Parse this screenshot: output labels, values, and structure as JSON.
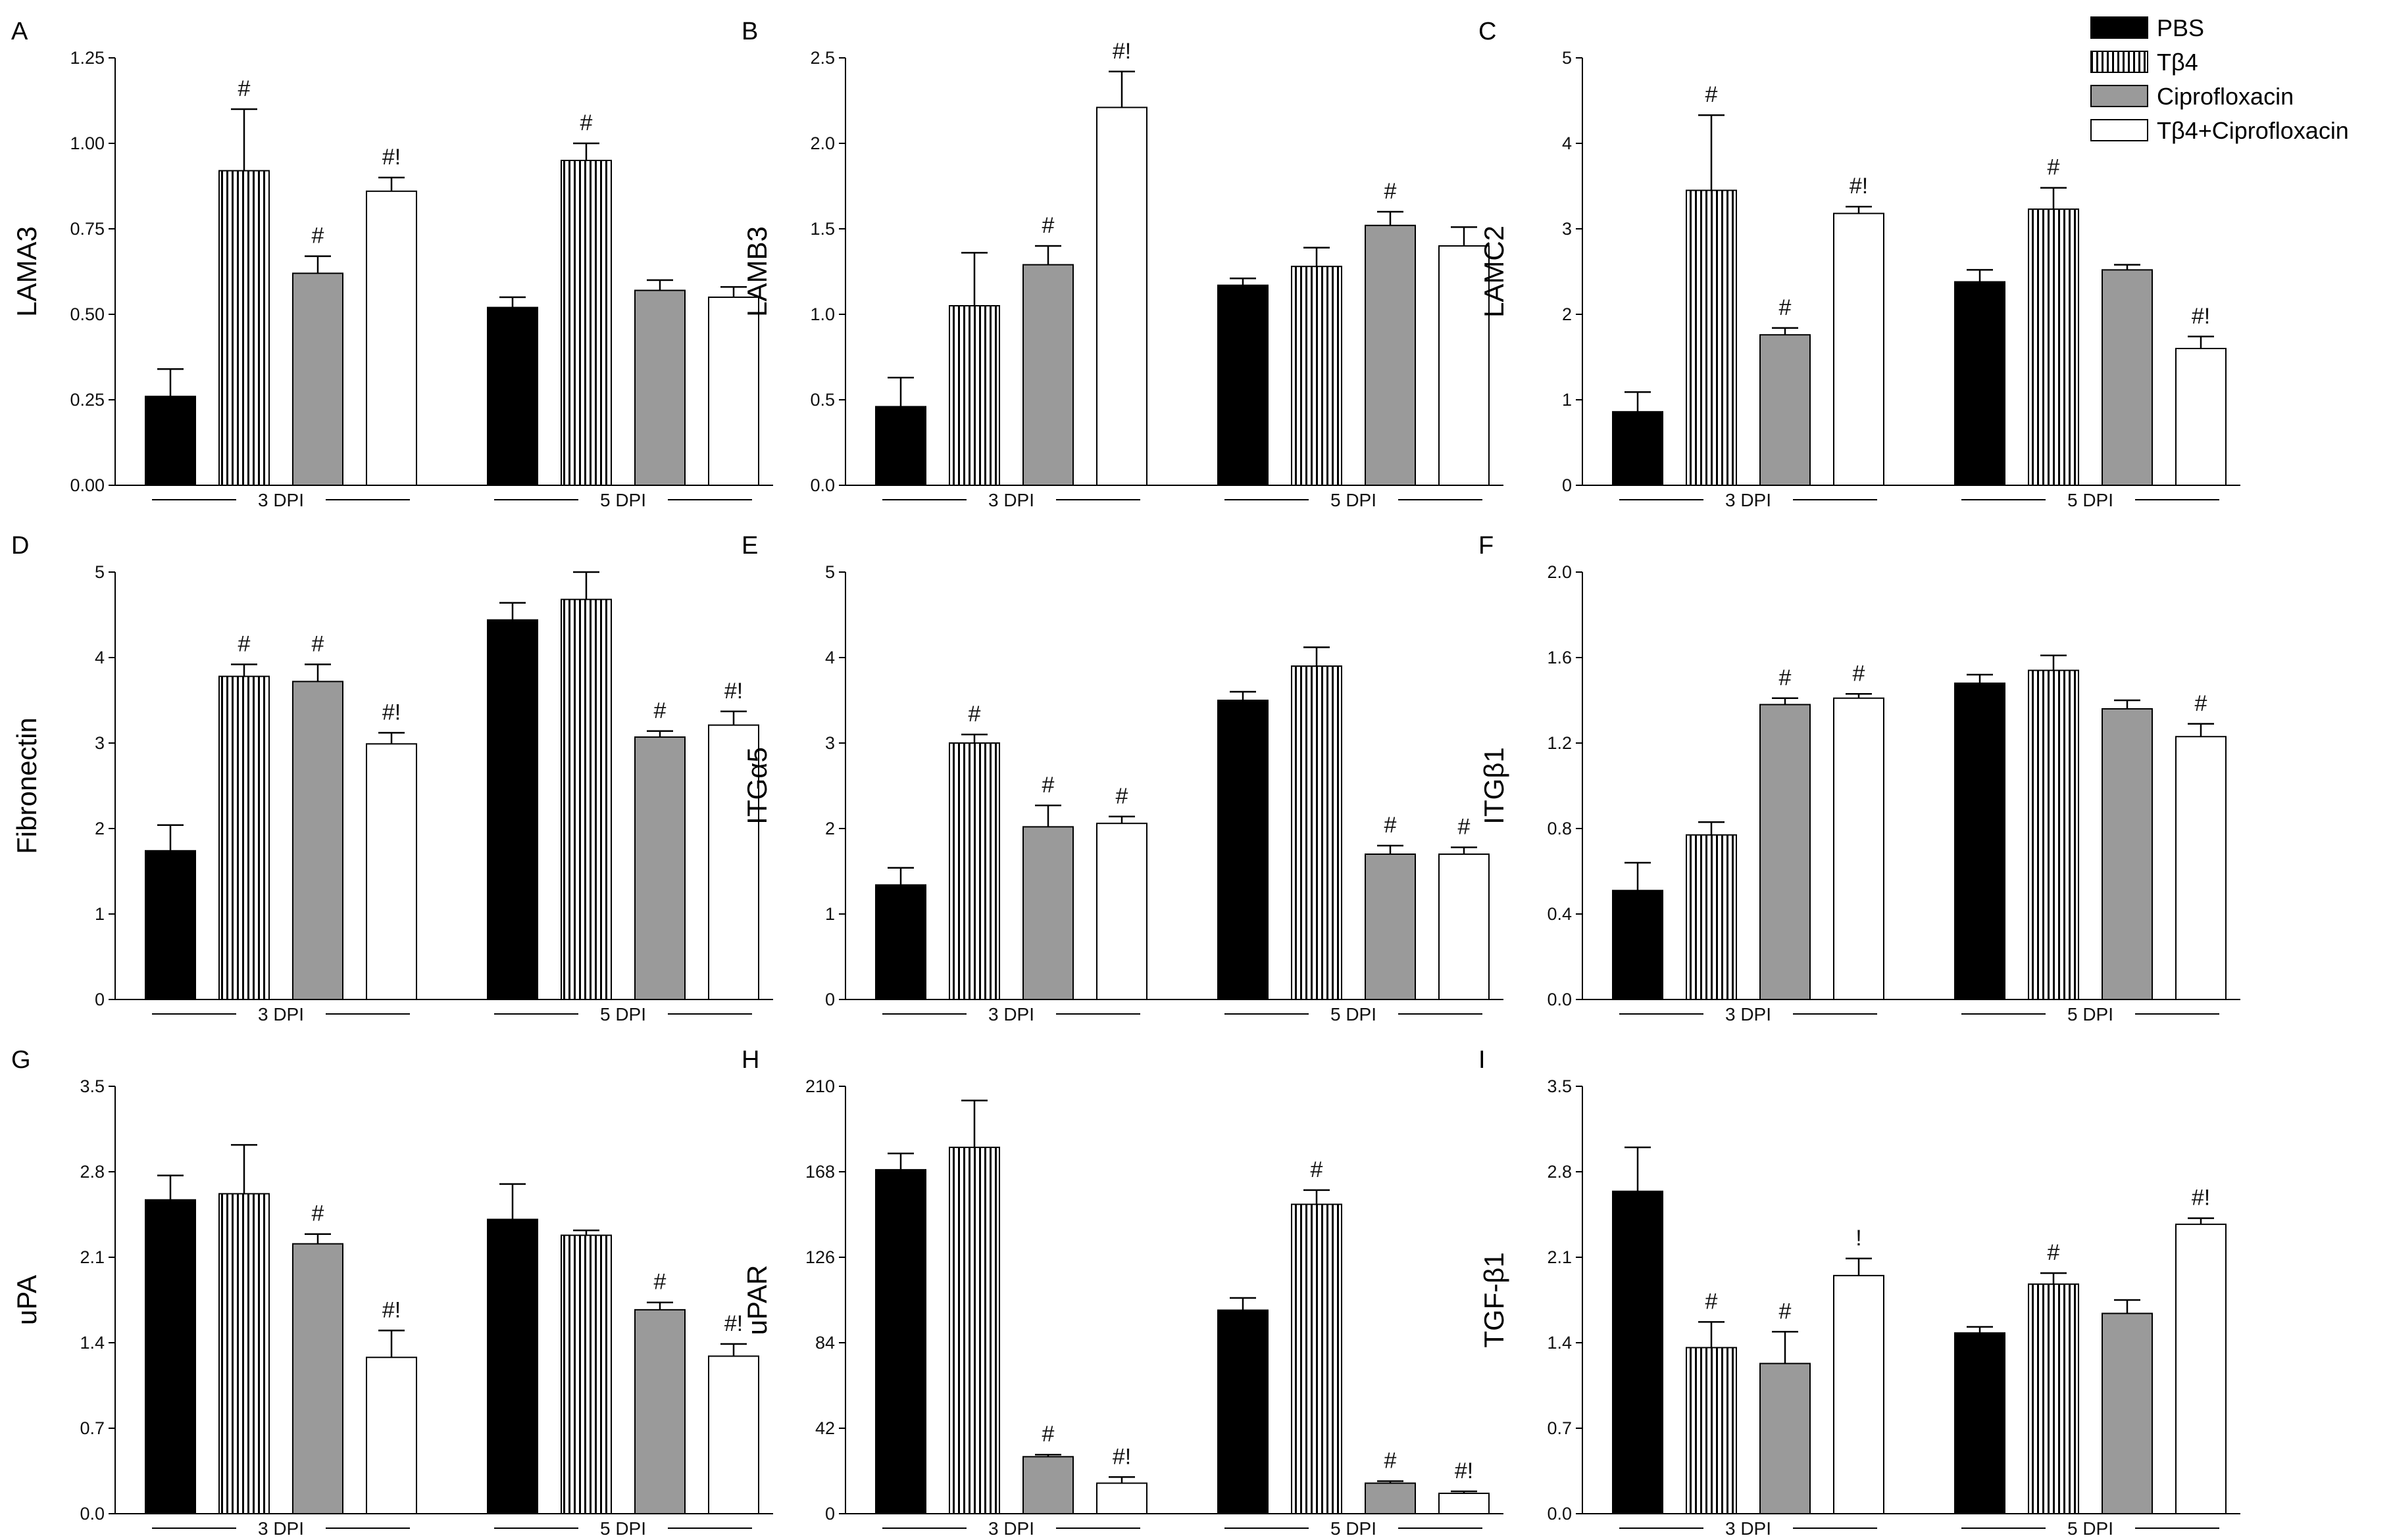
{
  "legend": {
    "items": [
      {
        "label": "PBS",
        "fill": "solid-black"
      },
      {
        "label": "Tβ4",
        "fill": "vertical-stripes"
      },
      {
        "label": "Ciprofloxacin",
        "fill": "solid-gray"
      },
      {
        "label": "Tβ4+Ciprofloxacin",
        "fill": "white"
      }
    ]
  },
  "colors": {
    "pbs": "#000000",
    "cipro": "#9a9a9a",
    "combo": "#ffffff",
    "stripe": "#000000",
    "axis": "#000000"
  },
  "chart_data": [
    {
      "panel": "A",
      "type": "bar",
      "ylabel": "LAMA3",
      "ylim": [
        0,
        1.25
      ],
      "yticks": [
        "0.00",
        "0.25",
        "0.50",
        "0.75",
        "1.00",
        "1.25"
      ],
      "groups": [
        "3 DPI",
        "5 DPI"
      ],
      "series": [
        {
          "name": "PBS",
          "values": [
            0.26,
            0.52
          ],
          "errors": [
            0.08,
            0.03
          ],
          "annotations": [
            "",
            ""
          ]
        },
        {
          "name": "Tβ4",
          "values": [
            0.92,
            0.95
          ],
          "errors": [
            0.18,
            0.05
          ],
          "annotations": [
            "#",
            "#"
          ]
        },
        {
          "name": "Ciprofloxacin",
          "values": [
            0.62,
            0.57
          ],
          "errors": [
            0.05,
            0.03
          ],
          "annotations": [
            "#",
            ""
          ]
        },
        {
          "name": "Tβ4+Ciprofloxacin",
          "values": [
            0.86,
            0.55
          ],
          "errors": [
            0.04,
            0.03
          ],
          "annotations": [
            "#!",
            ""
          ]
        }
      ]
    },
    {
      "panel": "B",
      "type": "bar",
      "ylabel": "LAMB3",
      "ylim": [
        0,
        2.5
      ],
      "yticks": [
        "0.0",
        "0.5",
        "1.0",
        "1.5",
        "2.0",
        "2.5"
      ],
      "groups": [
        "3 DPI",
        "5 DPI"
      ],
      "series": [
        {
          "name": "PBS",
          "values": [
            0.46,
            1.17
          ],
          "errors": [
            0.17,
            0.04
          ],
          "annotations": [
            "",
            ""
          ]
        },
        {
          "name": "Tβ4",
          "values": [
            1.05,
            1.28
          ],
          "errors": [
            0.31,
            0.11
          ],
          "annotations": [
            "",
            ""
          ]
        },
        {
          "name": "Ciprofloxacin",
          "values": [
            1.29,
            1.52
          ],
          "errors": [
            0.11,
            0.08
          ],
          "annotations": [
            "#",
            "#"
          ]
        },
        {
          "name": "Tβ4+Ciprofloxacin",
          "values": [
            2.21,
            1.4
          ],
          "errors": [
            0.21,
            0.11
          ],
          "annotations": [
            "#!",
            ""
          ]
        }
      ]
    },
    {
      "panel": "C",
      "type": "bar",
      "ylabel": "LAMC2",
      "ylim": [
        0,
        5
      ],
      "yticks": [
        "0",
        "1",
        "2",
        "3",
        "4",
        "5"
      ],
      "groups": [
        "3 DPI",
        "5 DPI"
      ],
      "series": [
        {
          "name": "PBS",
          "values": [
            0.86,
            2.38
          ],
          "errors": [
            0.23,
            0.14
          ],
          "annotations": [
            "",
            ""
          ]
        },
        {
          "name": "Tβ4",
          "values": [
            3.45,
            3.23
          ],
          "errors": [
            0.88,
            0.25
          ],
          "annotations": [
            "#",
            "#"
          ]
        },
        {
          "name": "Ciprofloxacin",
          "values": [
            1.76,
            2.52
          ],
          "errors": [
            0.08,
            0.06
          ],
          "annotations": [
            "#",
            ""
          ]
        },
        {
          "name": "Tβ4+Ciprofloxacin",
          "values": [
            3.18,
            1.6
          ],
          "errors": [
            0.08,
            0.14
          ],
          "annotations": [
            "#!",
            "#!"
          ]
        }
      ]
    },
    {
      "panel": "D",
      "type": "bar",
      "ylabel": "Fibronectin",
      "ylim": [
        0,
        5
      ],
      "yticks": [
        "0",
        "1",
        "2",
        "3",
        "4",
        "5"
      ],
      "groups": [
        "3 DPI",
        "5 DPI"
      ],
      "series": [
        {
          "name": "PBS",
          "values": [
            1.74,
            4.44
          ],
          "errors": [
            0.3,
            0.2
          ],
          "annotations": [
            "",
            ""
          ]
        },
        {
          "name": "Tβ4",
          "values": [
            3.78,
            4.68
          ],
          "errors": [
            0.14,
            0.32
          ],
          "annotations": [
            "#",
            ""
          ]
        },
        {
          "name": "Ciprofloxacin",
          "values": [
            3.72,
            3.07
          ],
          "errors": [
            0.2,
            0.07
          ],
          "annotations": [
            "#",
            "#"
          ]
        },
        {
          "name": "Tβ4+Ciprofloxacin",
          "values": [
            2.99,
            3.21
          ],
          "errors": [
            0.13,
            0.16
          ],
          "annotations": [
            "#!",
            "#!"
          ]
        }
      ]
    },
    {
      "panel": "E",
      "type": "bar",
      "ylabel": "ITGα5",
      "ylim": [
        0,
        5
      ],
      "yticks": [
        "0",
        "1",
        "2",
        "3",
        "4",
        "5"
      ],
      "groups": [
        "3 DPI",
        "5 DPI"
      ],
      "series": [
        {
          "name": "PBS",
          "values": [
            1.34,
            3.5
          ],
          "errors": [
            0.2,
            0.1
          ],
          "annotations": [
            "",
            ""
          ]
        },
        {
          "name": "Tβ4",
          "values": [
            3.0,
            3.9
          ],
          "errors": [
            0.1,
            0.22
          ],
          "annotations": [
            "#",
            ""
          ]
        },
        {
          "name": "Ciprofloxacin",
          "values": [
            2.02,
            1.7
          ],
          "errors": [
            0.25,
            0.1
          ],
          "annotations": [
            "#",
            "#"
          ]
        },
        {
          "name": "Tβ4+Ciprofloxacin",
          "values": [
            2.06,
            1.7
          ],
          "errors": [
            0.08,
            0.08
          ],
          "annotations": [
            "#",
            "#"
          ]
        }
      ]
    },
    {
      "panel": "F",
      "type": "bar",
      "ylabel": "ITGβ1",
      "ylim": [
        0,
        2.0
      ],
      "yticks": [
        "0.0",
        "0.4",
        "0.8",
        "1.2",
        "1.6",
        "2.0"
      ],
      "groups": [
        "3 DPI",
        "5 DPI"
      ],
      "series": [
        {
          "name": "PBS",
          "values": [
            0.51,
            1.48
          ],
          "errors": [
            0.13,
            0.04
          ],
          "annotations": [
            "",
            ""
          ]
        },
        {
          "name": "Tβ4",
          "values": [
            0.77,
            1.54
          ],
          "errors": [
            0.06,
            0.07
          ],
          "annotations": [
            "",
            ""
          ]
        },
        {
          "name": "Ciprofloxacin",
          "values": [
            1.38,
            1.36
          ],
          "errors": [
            0.03,
            0.04
          ],
          "annotations": [
            "#",
            ""
          ]
        },
        {
          "name": "Tβ4+Ciprofloxacin",
          "values": [
            1.41,
            1.23
          ],
          "errors": [
            0.02,
            0.06
          ],
          "annotations": [
            "#",
            "#"
          ]
        }
      ]
    },
    {
      "panel": "G",
      "type": "bar",
      "ylabel": "uPA",
      "ylim": [
        0,
        3.5
      ],
      "yticks": [
        "0.0",
        "0.7",
        "1.4",
        "2.1",
        "2.8",
        "3.5"
      ],
      "groups": [
        "3 DPI",
        "5 DPI"
      ],
      "series": [
        {
          "name": "PBS",
          "values": [
            2.57,
            2.41
          ],
          "errors": [
            0.2,
            0.29
          ],
          "annotations": [
            "",
            ""
          ]
        },
        {
          "name": "Tβ4",
          "values": [
            2.62,
            2.28
          ],
          "errors": [
            0.4,
            0.04
          ],
          "annotations": [
            "",
            ""
          ]
        },
        {
          "name": "Ciprofloxacin",
          "values": [
            2.21,
            1.67
          ],
          "errors": [
            0.08,
            0.06
          ],
          "annotations": [
            "#",
            "#"
          ]
        },
        {
          "name": "Tβ4+Ciprofloxacin",
          "values": [
            1.28,
            1.29
          ],
          "errors": [
            0.22,
            0.1
          ],
          "annotations": [
            "#!",
            "#!"
          ]
        }
      ]
    },
    {
      "panel": "H",
      "type": "bar",
      "ylabel": "uPAR",
      "ylim": [
        0,
        210
      ],
      "yticks": [
        "0",
        "42",
        "84",
        "126",
        "168",
        "210"
      ],
      "groups": [
        "3 DPI",
        "5 DPI"
      ],
      "series": [
        {
          "name": "PBS",
          "values": [
            169,
            100
          ],
          "errors": [
            8,
            6
          ],
          "annotations": [
            "",
            ""
          ]
        },
        {
          "name": "Tβ4",
          "values": [
            180,
            152
          ],
          "errors": [
            23,
            7
          ],
          "annotations": [
            "",
            "#"
          ]
        },
        {
          "name": "Ciprofloxacin",
          "values": [
            28,
            15
          ],
          "errors": [
            1,
            1
          ],
          "annotations": [
            "#",
            "#"
          ]
        },
        {
          "name": "Tβ4+Ciprofloxacin",
          "values": [
            15,
            10
          ],
          "errors": [
            3,
            1
          ],
          "annotations": [
            "#!",
            "#!"
          ]
        }
      ]
    },
    {
      "panel": "I",
      "type": "bar",
      "ylabel": "TGF-β1",
      "ylim": [
        0,
        3.5
      ],
      "yticks": [
        "0.0",
        "0.7",
        "1.4",
        "2.1",
        "2.8",
        "3.5"
      ],
      "groups": [
        "3 DPI",
        "5 DPI"
      ],
      "series": [
        {
          "name": "PBS",
          "values": [
            2.64,
            1.48
          ],
          "errors": [
            0.36,
            0.05
          ],
          "annotations": [
            "",
            ""
          ]
        },
        {
          "name": "Tβ4",
          "values": [
            1.36,
            1.88
          ],
          "errors": [
            0.21,
            0.09
          ],
          "annotations": [
            "#",
            "#"
          ]
        },
        {
          "name": "Ciprofloxacin",
          "values": [
            1.23,
            1.64
          ],
          "errors": [
            0.26,
            0.11
          ],
          "annotations": [
            "#",
            ""
          ]
        },
        {
          "name": "Tβ4+Ciprofloxacin",
          "values": [
            1.95,
            2.37
          ],
          "errors": [
            0.14,
            0.05
          ],
          "annotations": [
            "!",
            "#!"
          ]
        }
      ]
    }
  ]
}
